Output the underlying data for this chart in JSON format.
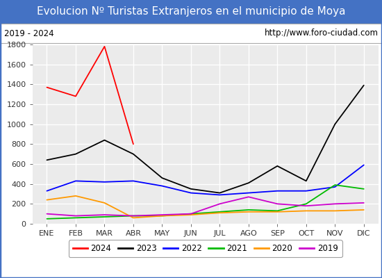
{
  "title": "Evolucion Nº Turistas Extranjeros en el municipio de Moya",
  "subtitle_left": "2019 - 2024",
  "subtitle_right": "http://www.foro-ciudad.com",
  "months": [
    "ENE",
    "FEB",
    "MAR",
    "ABR",
    "MAY",
    "JUN",
    "JUL",
    "AGO",
    "SEP",
    "OCT",
    "NOV",
    "DIC"
  ],
  "series": {
    "2024": [
      1370,
      1280,
      1780,
      800,
      null,
      null,
      null,
      null,
      null,
      null,
      null,
      null
    ],
    "2023": [
      640,
      700,
      840,
      700,
      460,
      350,
      310,
      410,
      580,
      430,
      1000,
      1390
    ],
    "2022": [
      330,
      430,
      420,
      430,
      380,
      310,
      290,
      310,
      330,
      330,
      370,
      590
    ],
    "2021": [
      50,
      60,
      70,
      80,
      80,
      100,
      120,
      140,
      130,
      200,
      390,
      350
    ],
    "2020": [
      240,
      280,
      210,
      60,
      80,
      90,
      110,
      120,
      120,
      130,
      130,
      140
    ],
    "2019": [
      100,
      80,
      90,
      80,
      90,
      100,
      200,
      270,
      200,
      180,
      200,
      210
    ]
  },
  "colors": {
    "2024": "#ff0000",
    "2023": "#000000",
    "2022": "#0000ff",
    "2021": "#00bb00",
    "2020": "#ff9900",
    "2019": "#cc00cc"
  },
  "ylim": [
    0,
    1800
  ],
  "yticks": [
    0,
    200,
    400,
    600,
    800,
    1000,
    1200,
    1400,
    1600,
    1800
  ],
  "title_bg_color": "#4472c4",
  "title_text_color": "#ffffff",
  "plot_bg_color": "#ebebeb",
  "grid_color": "#ffffff",
  "outer_border_color": "#4472c4",
  "title_fontsize": 11,
  "subtitle_fontsize": 8.5,
  "axis_fontsize": 8,
  "legend_fontsize": 8.5
}
